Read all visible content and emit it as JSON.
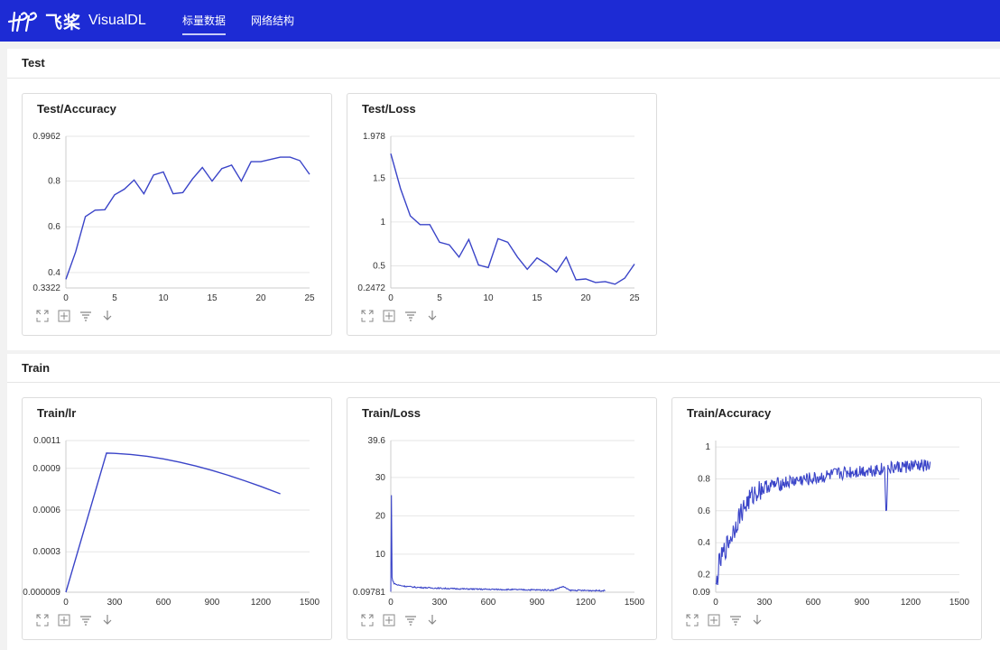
{
  "app": {
    "logo_cn": "飞桨",
    "logo_en": "VisualDL"
  },
  "nav": {
    "tabs": [
      {
        "label": "标量数据",
        "active": true
      },
      {
        "label": "网络结构",
        "active": false
      }
    ]
  },
  "colors": {
    "header": "#1d2bd4",
    "line": "#3a44c8"
  },
  "toolbar_icons": [
    "expand-icon",
    "fit-icon",
    "filter-icon",
    "download-icon"
  ],
  "sections": [
    {
      "title": "Test"
    },
    {
      "title": "Train"
    }
  ],
  "chart_data": [
    {
      "type": "line",
      "title": "Test/Accuracy",
      "x": [
        0,
        1,
        2,
        3,
        4,
        5,
        6,
        7,
        8,
        9,
        10,
        11,
        12,
        13,
        14,
        15,
        16,
        17,
        18,
        19,
        20,
        21,
        22,
        23,
        24,
        25
      ],
      "series": [
        {
          "values": [
            0.37,
            0.49,
            0.645,
            0.673,
            0.675,
            0.74,
            0.765,
            0.805,
            0.745,
            0.827,
            0.84,
            0.745,
            0.75,
            0.81,
            0.86,
            0.8,
            0.855,
            0.87,
            0.8,
            0.885,
            0.885,
            0.895,
            0.905,
            0.905,
            0.89,
            0.83
          ]
        }
      ],
      "xlim": [
        0,
        25
      ],
      "ylim": [
        0.3322,
        0.9962
      ],
      "xticks": [
        0,
        5,
        10,
        15,
        20,
        25
      ],
      "yticks": [
        {
          "v": 0.3322,
          "label": "0.3322"
        },
        {
          "v": 0.4,
          "label": "0.4"
        },
        {
          "v": 0.6,
          "label": "0.6"
        },
        {
          "v": 0.8,
          "label": "0.8"
        },
        {
          "v": 0.9962,
          "label": "0.9962"
        }
      ]
    },
    {
      "type": "line",
      "title": "Test/Loss",
      "x": [
        0,
        1,
        2,
        3,
        4,
        5,
        6,
        7,
        8,
        9,
        10,
        11,
        12,
        13,
        14,
        15,
        16,
        17,
        18,
        19,
        20,
        21,
        22,
        23,
        24,
        25
      ],
      "series": [
        {
          "values": [
            1.78,
            1.38,
            1.07,
            0.97,
            0.97,
            0.77,
            0.74,
            0.6,
            0.8,
            0.51,
            0.48,
            0.81,
            0.77,
            0.6,
            0.46,
            0.59,
            0.52,
            0.43,
            0.6,
            0.34,
            0.35,
            0.31,
            0.32,
            0.29,
            0.36,
            0.52
          ]
        }
      ],
      "xlim": [
        0,
        25
      ],
      "ylim": [
        0.2472,
        1.978
      ],
      "xticks": [
        0,
        5,
        10,
        15,
        20,
        25
      ],
      "yticks": [
        {
          "v": 0.2472,
          "label": "0.2472"
        },
        {
          "v": 0.5,
          "label": "0.5"
        },
        {
          "v": 1,
          "label": "1"
        },
        {
          "v": 1.5,
          "label": "1.5"
        },
        {
          "v": 1.978,
          "label": "1.978"
        }
      ]
    },
    {
      "type": "line",
      "title": "Train/lr",
      "x": [
        0,
        250,
        300,
        400,
        500,
        600,
        700,
        800,
        900,
        1000,
        1100,
        1200,
        1300,
        1320
      ],
      "series": [
        {
          "values": [
            9e-06,
            0.00101,
            0.001008,
            0.001,
            0.000987,
            0.000968,
            0.000945,
            0.000917,
            0.000885,
            0.00085,
            0.000811,
            0.00077,
            0.000726,
            0.000717
          ]
        }
      ],
      "xlim": [
        0,
        1500
      ],
      "ylim": [
        9e-06,
        0.0011
      ],
      "xticks": [
        0,
        300,
        600,
        900,
        1200,
        1500
      ],
      "yticks": [
        {
          "v": 9e-06,
          "label": "0.000009"
        },
        {
          "v": 0.0003,
          "label": "0.0003"
        },
        {
          "v": 0.0006,
          "label": "0.0006"
        },
        {
          "v": 0.0009,
          "label": "0.0009"
        },
        {
          "v": 0.0011,
          "label": "0.0011"
        }
      ]
    },
    {
      "type": "line",
      "title": "Train/Loss",
      "noisy": true,
      "x": [
        0,
        3,
        6,
        10,
        20,
        40,
        80,
        150,
        250,
        400,
        600,
        800,
        1000,
        1060,
        1100,
        1200,
        1320
      ],
      "series": [
        {
          "values": [
            0.2,
            35.5,
            5,
            3.2,
            2.4,
            2.0,
            1.7,
            1.4,
            1.2,
            1.0,
            0.85,
            0.75,
            0.65,
            1.6,
            0.6,
            0.55,
            0.5
          ]
        }
      ],
      "xlim": [
        0,
        1500
      ],
      "ylim": [
        0.09781,
        39.6
      ],
      "xticks": [
        0,
        300,
        600,
        900,
        1200,
        1500
      ],
      "yticks": [
        {
          "v": 0.09781,
          "label": "0.09781"
        },
        {
          "v": 10,
          "label": "10"
        },
        {
          "v": 20,
          "label": "20"
        },
        {
          "v": 30,
          "label": "30"
        },
        {
          "v": 39.6,
          "label": "39.6"
        }
      ]
    },
    {
      "type": "line",
      "title": "Train/Accuracy",
      "noisy": true,
      "x": [
        0,
        20,
        50,
        100,
        150,
        200,
        250,
        300,
        400,
        500,
        600,
        700,
        800,
        900,
        1000,
        1040,
        1050,
        1060,
        1100,
        1200,
        1320
      ],
      "series": [
        {
          "values": [
            0.1,
            0.26,
            0.34,
            0.45,
            0.58,
            0.66,
            0.72,
            0.75,
            0.77,
            0.79,
            0.8,
            0.82,
            0.84,
            0.85,
            0.86,
            0.86,
            0.58,
            0.86,
            0.87,
            0.88,
            0.88
          ]
        }
      ],
      "xlim": [
        0,
        1500
      ],
      "ylim": [
        0.09,
        1.04
      ],
      "xticks": [
        0,
        300,
        600,
        900,
        1200,
        1500
      ],
      "yticks": [
        {
          "v": 0.09,
          "label": "0.09"
        },
        {
          "v": 0.2,
          "label": "0.2"
        },
        {
          "v": 0.4,
          "label": "0.4"
        },
        {
          "v": 0.6,
          "label": "0.6"
        },
        {
          "v": 0.8,
          "label": "0.8"
        },
        {
          "v": 1,
          "label": "1"
        }
      ]
    }
  ]
}
